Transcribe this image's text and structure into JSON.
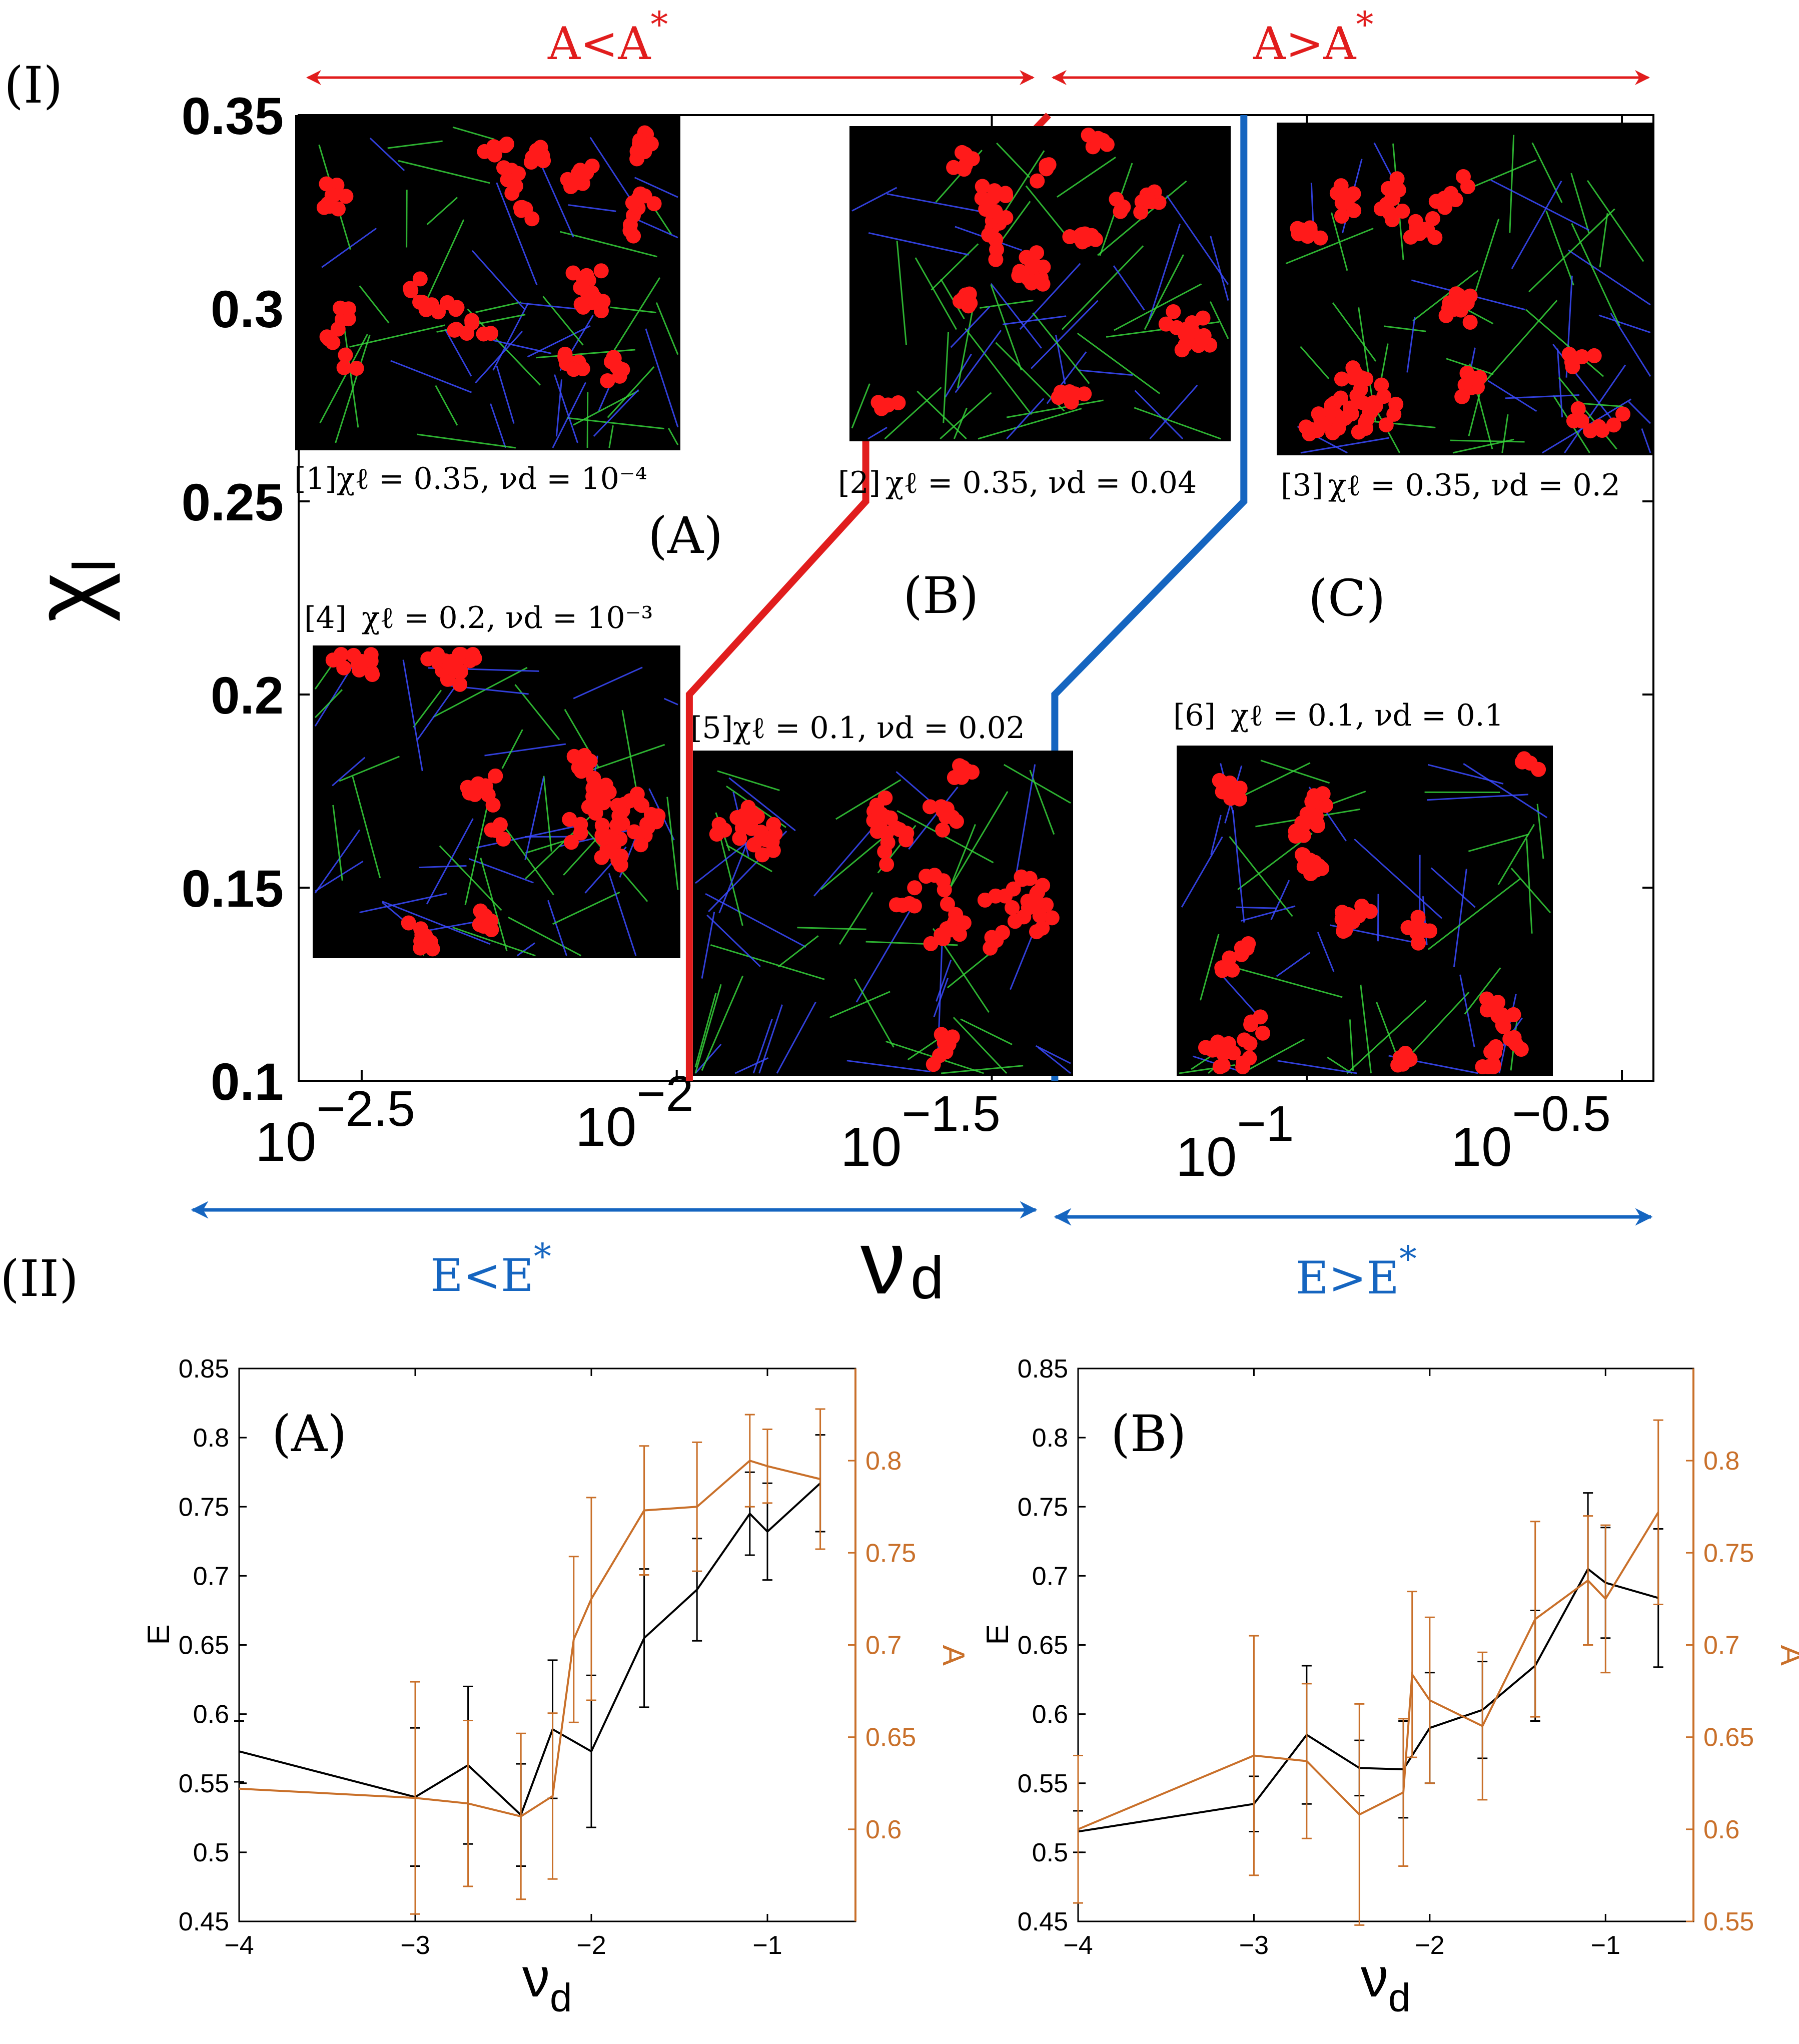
{
  "figure": {
    "section_I_label": "(I)",
    "section_II_label": "(II)",
    "colors": {
      "red": "#e11d1d",
      "blue": "#1565c0",
      "black": "#000000",
      "orange": "#c9702a",
      "panel_bg": "#000000",
      "cell": "#ff1a1a",
      "fiber_green": "#35d13a",
      "fiber_blue": "#3a4bff"
    }
  },
  "chart_data": [
    {
      "type": "phase-diagram",
      "id": "panel-I",
      "xlabel_main": "ν",
      "xlabel_sub": "d",
      "ylabel_main": "χ",
      "ylabel_sub": "l",
      "x_scale": "log10",
      "xlim_log10": [
        -2.6,
        -0.45
      ],
      "ylim": [
        0.1,
        0.35
      ],
      "x_ticks": [
        {
          "log10": -2.5,
          "base": "10",
          "exp": "−2.5"
        },
        {
          "log10": -2.0,
          "base": "10",
          "exp": "−2"
        },
        {
          "log10": -1.5,
          "base": "10",
          "exp": "−1.5"
        },
        {
          "log10": -1.0,
          "base": "10",
          "exp": "−1"
        },
        {
          "log10": -0.5,
          "base": "10",
          "exp": "−0.5"
        }
      ],
      "y_ticks": [
        "0.1",
        "0.15",
        "0.2",
        "0.25",
        "0.3",
        "0.35"
      ],
      "y_tick_values": [
        0.1,
        0.15,
        0.2,
        0.25,
        0.3,
        0.35
      ],
      "boundaries": [
        {
          "name": "A* boundary",
          "color": "red",
          "points_log10": [
            [
              -1.98,
              0.1
            ],
            [
              -1.98,
              0.2
            ],
            [
              -1.7,
              0.25
            ],
            [
              -1.7,
              0.3
            ],
            [
              -1.41,
              0.35
            ]
          ]
        },
        {
          "name": "E* boundary",
          "color": "blue",
          "points_log10": [
            [
              -1.4,
              0.1
            ],
            [
              -1.4,
              0.2
            ],
            [
              -1.1,
              0.25
            ],
            [
              -1.1,
              0.35
            ]
          ]
        }
      ],
      "regions": [
        "(A)",
        "(B)",
        "(C)"
      ],
      "top_arrows": [
        {
          "label": "A<A",
          "sup": "*",
          "color": "red"
        },
        {
          "label": "A>A",
          "sup": "*",
          "color": "red"
        }
      ],
      "bottom_arrows": [
        {
          "label": "E<E",
          "sup": "*",
          "color": "blue"
        },
        {
          "label": "E>E",
          "sup": "*",
          "color": "blue"
        }
      ],
      "insets": [
        {
          "index": "[1]",
          "caption": "χℓ = 0.35, νd = 10⁻⁴"
        },
        {
          "index": "[2]",
          "caption": "χℓ = 0.35, νd = 0.04"
        },
        {
          "index": "[3]",
          "caption": "χℓ = 0.35, νd = 0.2"
        },
        {
          "index": "[4]",
          "caption": "χℓ = 0.2, νd = 10⁻³"
        },
        {
          "index": "[5]",
          "caption": "χℓ = 0.1, νd = 0.02"
        },
        {
          "index": "[6]",
          "caption": "χℓ = 0.1, νd = 0.1"
        }
      ]
    },
    {
      "type": "line",
      "id": "panel-II-A",
      "panel_label": "(A)",
      "xlabel_main": "ν",
      "xlabel_sub": "d",
      "ylabel_left": "E",
      "ylabel_right": "A",
      "xlim": [
        -4,
        -0.5
      ],
      "ylim_left": [
        0.45,
        0.85
      ],
      "ylim_right": [
        0.55,
        0.85
      ],
      "x_ticks": [
        "−4",
        "−3",
        "−2",
        "−1"
      ],
      "x_tick_values": [
        -4,
        -3,
        -2,
        -1
      ],
      "y_left_ticks": [
        "0.45",
        "0.5",
        "0.55",
        "0.6",
        "0.65",
        "0.7",
        "0.75",
        "0.8",
        "0.85"
      ],
      "y_left_tick_values": [
        0.45,
        0.5,
        0.55,
        0.6,
        0.65,
        0.7,
        0.75,
        0.8,
        0.85
      ],
      "y_right_ticks": [
        "0.6",
        "0.65",
        "0.7",
        "0.75",
        "0.8"
      ],
      "y_right_tick_values": [
        0.6,
        0.65,
        0.7,
        0.75,
        0.8
      ],
      "series": [
        {
          "name": "E",
          "axis": "left",
          "color": "black",
          "x": [
            -4,
            -3,
            -2.7,
            -2.4,
            -2.22,
            -2.0,
            -1.7,
            -1.4,
            -1.1,
            -1.0,
            -0.7
          ],
          "values": [
            0.573,
            0.54,
            0.563,
            0.527,
            0.589,
            0.573,
            0.655,
            0.69,
            0.745,
            0.732,
            0.767
          ],
          "err": [
            0.022,
            0.05,
            0.057,
            0.037,
            0.05,
            0.055,
            0.05,
            0.037,
            0.03,
            0.035,
            0.035
          ]
        },
        {
          "name": "A",
          "axis": "right",
          "color": "orange",
          "x": [
            -4,
            -3,
            -2.7,
            -2.4,
            -2.22,
            -2.1,
            -2.0,
            -1.7,
            -1.4,
            -1.1,
            -1.0,
            -0.7
          ],
          "values": [
            0.622,
            0.617,
            0.614,
            0.607,
            0.618,
            0.703,
            0.725,
            0.773,
            0.775,
            0.8,
            0.797,
            0.79
          ],
          "err": [
            0.0,
            0.063,
            0.045,
            0.045,
            0.045,
            0.045,
            0.055,
            0.035,
            0.035,
            0.025,
            0.02,
            0.038
          ]
        }
      ]
    },
    {
      "type": "line",
      "id": "panel-II-B",
      "panel_label": "(B)",
      "xlabel_main": "ν",
      "xlabel_sub": "d",
      "ylabel_left": "E",
      "ylabel_right": "A",
      "xlim": [
        -4,
        -0.5
      ],
      "ylim_left": [
        0.45,
        0.85
      ],
      "ylim_right": [
        0.55,
        0.85
      ],
      "x_ticks": [
        "−4",
        "−3",
        "−2",
        "−1"
      ],
      "x_tick_values": [
        -4,
        -3,
        -2,
        -1
      ],
      "y_left_ticks": [
        "0.45",
        "0.5",
        "0.55",
        "0.6",
        "0.65",
        "0.7",
        "0.75",
        "0.8",
        "0.85"
      ],
      "y_left_tick_values": [
        0.45,
        0.5,
        0.55,
        0.6,
        0.65,
        0.7,
        0.75,
        0.8,
        0.85
      ],
      "y_right_ticks": [
        "0.55",
        "0.6",
        "0.65",
        "0.7",
        "0.75",
        "0.8"
      ],
      "y_right_tick_values": [
        0.55,
        0.6,
        0.65,
        0.7,
        0.75,
        0.8
      ],
      "series": [
        {
          "name": "E",
          "axis": "left",
          "color": "black",
          "x": [
            -4,
            -3,
            -2.7,
            -2.4,
            -2.15,
            -2.0,
            -1.7,
            -1.4,
            -1.1,
            -1.0,
            -0.7
          ],
          "values": [
            0.515,
            0.535,
            0.585,
            0.561,
            0.56,
            0.59,
            0.603,
            0.635,
            0.705,
            0.695,
            0.684
          ],
          "err": [
            0.015,
            0.02,
            0.05,
            0.02,
            0.035,
            0.04,
            0.035,
            0.04,
            0.055,
            0.04,
            0.05
          ]
        },
        {
          "name": "A",
          "axis": "right",
          "color": "orange",
          "x": [
            -4,
            -3,
            -2.7,
            -2.4,
            -2.15,
            -2.1,
            -2.0,
            -1.7,
            -1.4,
            -1.1,
            -1.0,
            -0.7
          ],
          "values": [
            0.6,
            0.64,
            0.637,
            0.608,
            0.62,
            0.684,
            0.67,
            0.656,
            0.714,
            0.735,
            0.725,
            0.772
          ],
          "err": [
            0.04,
            0.065,
            0.042,
            0.06,
            0.04,
            0.045,
            0.045,
            0.04,
            0.053,
            0.035,
            0.04,
            0.05
          ]
        }
      ]
    }
  ]
}
